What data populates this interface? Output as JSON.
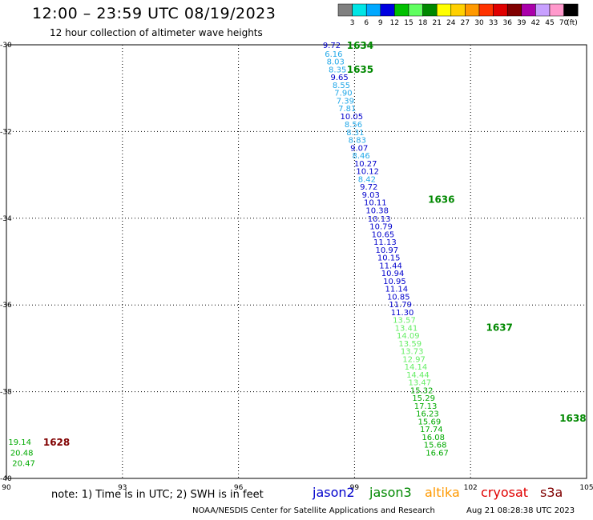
{
  "header": {
    "title": "12:00 – 23:59 UTC 08/19/2023",
    "subtitle": "12 hour collection of altimeter wave heights"
  },
  "legend_scale": {
    "labels": [
      "3",
      "6",
      "9",
      "12",
      "15",
      "18",
      "21",
      "24",
      "27",
      "30",
      "33",
      "36",
      "39",
      "42",
      "45",
      "70"
    ],
    "unit": "(ft)",
    "colors": [
      "#808080",
      "#00e5e5",
      "#00a8ff",
      "#0000e0",
      "#00c000",
      "#60ff60",
      "#008800",
      "#ffff00",
      "#ffd000",
      "#ff9900",
      "#ff3300",
      "#e00000",
      "#800000",
      "#aa00aa",
      "#c8a0ff",
      "#ff99cc",
      "#000000"
    ]
  },
  "footer": {
    "note": "note:  1) Time is in UTC;  2) SWH is in feet",
    "credit": "NOAA/NESDIS Center for Satellite Applications and Research",
    "timestamp": "Aug 21 08:28:38 UTC 2023"
  },
  "satellites": [
    {
      "name": "jason2",
      "color": "#0000cc"
    },
    {
      "name": "jason3",
      "color": "#008800"
    },
    {
      "name": "altika",
      "color": "#ff9900"
    },
    {
      "name": "cryosat",
      "color": "#e00000"
    },
    {
      "name": "s3a",
      "color": "#800000"
    }
  ],
  "chart_data": {
    "type": "scatter",
    "title": "12:00 – 23:59 UTC 08/19/2023",
    "subtitle": "12 hour collection of altimeter wave heights",
    "xlim": [
      90,
      105
    ],
    "ylim": [
      -40,
      -30
    ],
    "x_ticks": [
      90,
      93,
      96,
      99,
      102,
      105
    ],
    "y_ticks": [
      -30,
      -32,
      -34,
      -36,
      -38,
      -40
    ],
    "grid": true,
    "unit": "ft",
    "time_labels": [
      {
        "text": "1634",
        "lon": 98.8,
        "lat": -30.0,
        "color": "#008800"
      },
      {
        "text": "1635",
        "lon": 98.8,
        "lat": -30.55,
        "color": "#008800"
      },
      {
        "text": "1636",
        "lon": 100.9,
        "lat": -33.55,
        "color": "#008800"
      },
      {
        "text": "1637",
        "lon": 102.4,
        "lat": -36.5,
        "color": "#008800"
      },
      {
        "text": "1638",
        "lon": 104.3,
        "lat": -38.6,
        "color": "#008800"
      },
      {
        "text": "1628",
        "lon": 90.95,
        "lat": -39.15,
        "color": "#800000"
      }
    ],
    "points": [
      {
        "lon": 98.18,
        "lat": -30.0,
        "v": "9.72",
        "c": "#0000cc"
      },
      {
        "lon": 98.23,
        "lat": -30.2,
        "v": "6.16",
        "c": "#22a8e8"
      },
      {
        "lon": 98.28,
        "lat": -30.38,
        "v": "8.03",
        "c": "#22a8e8"
      },
      {
        "lon": 98.33,
        "lat": -30.56,
        "v": "8.35",
        "c": "#22a8e8"
      },
      {
        "lon": 98.38,
        "lat": -30.74,
        "v": "9.65",
        "c": "#0000cc"
      },
      {
        "lon": 98.43,
        "lat": -30.92,
        "v": "8.55",
        "c": "#22a8e8"
      },
      {
        "lon": 98.48,
        "lat": -31.1,
        "v": "7.90",
        "c": "#22a8e8"
      },
      {
        "lon": 98.53,
        "lat": -31.28,
        "v": "7.39",
        "c": "#22a8e8"
      },
      {
        "lon": 98.58,
        "lat": -31.46,
        "v": "7.81",
        "c": "#22a8e8"
      },
      {
        "lon": 98.63,
        "lat": -31.64,
        "v": "10.05",
        "c": "#0000cc"
      },
      {
        "lon": 98.74,
        "lat": -31.83,
        "v": "8.56",
        "c": "#22a8e8"
      },
      {
        "lon": 98.79,
        "lat": -32.01,
        "v": "8.31",
        "c": "#22a8e8"
      },
      {
        "lon": 98.84,
        "lat": -32.19,
        "v": "8.83",
        "c": "#22a8e8"
      },
      {
        "lon": 98.89,
        "lat": -32.37,
        "v": "9.07",
        "c": "#0000cc"
      },
      {
        "lon": 98.94,
        "lat": -32.55,
        "v": "8.46",
        "c": "#22a8e8"
      },
      {
        "lon": 98.99,
        "lat": -32.73,
        "v": "10.27",
        "c": "#0000cc"
      },
      {
        "lon": 99.04,
        "lat": -32.91,
        "v": "10.12",
        "c": "#0000cc"
      },
      {
        "lon": 99.09,
        "lat": -33.09,
        "v": "8.42",
        "c": "#22a8e8"
      },
      {
        "lon": 99.14,
        "lat": -33.27,
        "v": "9.72",
        "c": "#0000cc"
      },
      {
        "lon": 99.19,
        "lat": -33.45,
        "v": "9.03",
        "c": "#0000cc"
      },
      {
        "lon": 99.24,
        "lat": -33.63,
        "v": "10.11",
        "c": "#0000cc"
      },
      {
        "lon": 99.29,
        "lat": -33.81,
        "v": "10.38",
        "c": "#0000cc"
      },
      {
        "lon": 99.34,
        "lat": -34.0,
        "v": "10.13",
        "c": "#0000cc"
      },
      {
        "lon": 99.39,
        "lat": -34.18,
        "v": "10.79",
        "c": "#0000cc"
      },
      {
        "lon": 99.44,
        "lat": -34.36,
        "v": "10.65",
        "c": "#0000cc"
      },
      {
        "lon": 99.49,
        "lat": -34.54,
        "v": "11.13",
        "c": "#0000cc"
      },
      {
        "lon": 99.54,
        "lat": -34.72,
        "v": "10.97",
        "c": "#0000cc"
      },
      {
        "lon": 99.59,
        "lat": -34.9,
        "v": "10.15",
        "c": "#0000cc"
      },
      {
        "lon": 99.64,
        "lat": -35.08,
        "v": "11.44",
        "c": "#0000cc"
      },
      {
        "lon": 99.69,
        "lat": -35.26,
        "v": "10.94",
        "c": "#0000cc"
      },
      {
        "lon": 99.74,
        "lat": -35.44,
        "v": "10.95",
        "c": "#0000cc"
      },
      {
        "lon": 99.79,
        "lat": -35.62,
        "v": "11.14",
        "c": "#0000cc"
      },
      {
        "lon": 99.84,
        "lat": -35.8,
        "v": "10.85",
        "c": "#0000cc"
      },
      {
        "lon": 99.89,
        "lat": -35.98,
        "v": "11.79",
        "c": "#0000cc"
      },
      {
        "lon": 99.94,
        "lat": -36.16,
        "v": "11.30",
        "c": "#0000cc"
      },
      {
        "lon": 99.99,
        "lat": -36.34,
        "v": "13.57",
        "c": "#66ee66"
      },
      {
        "lon": 100.04,
        "lat": -36.52,
        "v": "13.41",
        "c": "#66ee66"
      },
      {
        "lon": 100.09,
        "lat": -36.7,
        "v": "14.09",
        "c": "#66ee66"
      },
      {
        "lon": 100.14,
        "lat": -36.88,
        "v": "13.59",
        "c": "#66ee66"
      },
      {
        "lon": 100.19,
        "lat": -37.06,
        "v": "13.73",
        "c": "#66ee66"
      },
      {
        "lon": 100.24,
        "lat": -37.24,
        "v": "12.97",
        "c": "#66ee66"
      },
      {
        "lon": 100.29,
        "lat": -37.42,
        "v": "14.14",
        "c": "#66ee66"
      },
      {
        "lon": 100.34,
        "lat": -37.6,
        "v": "14.44",
        "c": "#66ee66"
      },
      {
        "lon": 100.39,
        "lat": -37.78,
        "v": "13.47",
        "c": "#66ee66"
      },
      {
        "lon": 100.44,
        "lat": -37.96,
        "v": "15.32",
        "c": "#00aa00"
      },
      {
        "lon": 100.49,
        "lat": -38.14,
        "v": "15.29",
        "c": "#00aa00"
      },
      {
        "lon": 100.54,
        "lat": -38.32,
        "v": "17.13",
        "c": "#00aa00"
      },
      {
        "lon": 100.59,
        "lat": -38.5,
        "v": "16.23",
        "c": "#00aa00"
      },
      {
        "lon": 100.64,
        "lat": -38.68,
        "v": "15.69",
        "c": "#00aa00"
      },
      {
        "lon": 100.69,
        "lat": -38.86,
        "v": "17.74",
        "c": "#00aa00"
      },
      {
        "lon": 100.74,
        "lat": -39.04,
        "v": "16.08",
        "c": "#00aa00"
      },
      {
        "lon": 100.79,
        "lat": -39.22,
        "v": "15.68",
        "c": "#00aa00"
      },
      {
        "lon": 100.84,
        "lat": -39.4,
        "v": "16.67",
        "c": "#00aa00"
      },
      {
        "lon": 90.05,
        "lat": -39.15,
        "v": "19.14",
        "c": "#00aa00"
      },
      {
        "lon": 90.1,
        "lat": -39.4,
        "v": "20.48",
        "c": "#00aa00"
      },
      {
        "lon": 90.15,
        "lat": -39.64,
        "v": "20.47",
        "c": "#00aa00"
      }
    ]
  }
}
